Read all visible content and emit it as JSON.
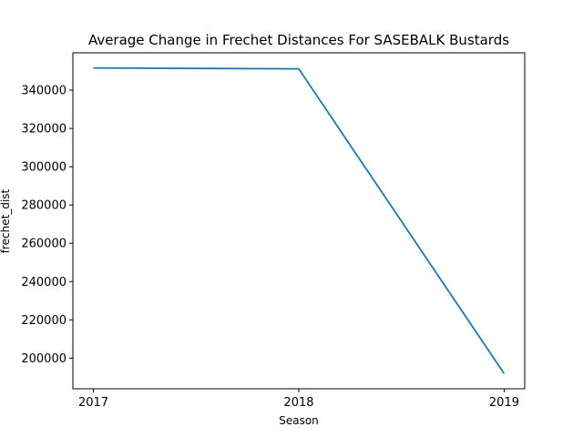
{
  "chart_data": {
    "type": "line",
    "title": "Average Change in Frechet Distances For SASEBALK Bustards",
    "xlabel": "Season",
    "ylabel": "frechet_dist",
    "x": [
      "2017",
      "2018",
      "2019"
    ],
    "series": [
      {
        "values": [
          351600,
          351100,
          191900
        ],
        "color": "#1f77b4"
      }
    ],
    "xlim": [
      2016.9,
      2019.1
    ],
    "ylim": [
      184000,
      359500
    ],
    "yticks": [
      {
        "value": 200000,
        "label": "200000"
      },
      {
        "value": 220000,
        "label": "220000"
      },
      {
        "value": 240000,
        "label": "240000"
      },
      {
        "value": 260000,
        "label": "260000"
      },
      {
        "value": 280000,
        "label": "280000"
      },
      {
        "value": 300000,
        "label": "300000"
      },
      {
        "value": 320000,
        "label": "320000"
      },
      {
        "value": 340000,
        "label": "340000"
      }
    ],
    "xticks": [
      {
        "value": 2017,
        "label": "2017"
      },
      {
        "value": 2018,
        "label": "2018"
      },
      {
        "value": 2019,
        "label": "2019"
      }
    ],
    "grid": false,
    "legend": false
  }
}
